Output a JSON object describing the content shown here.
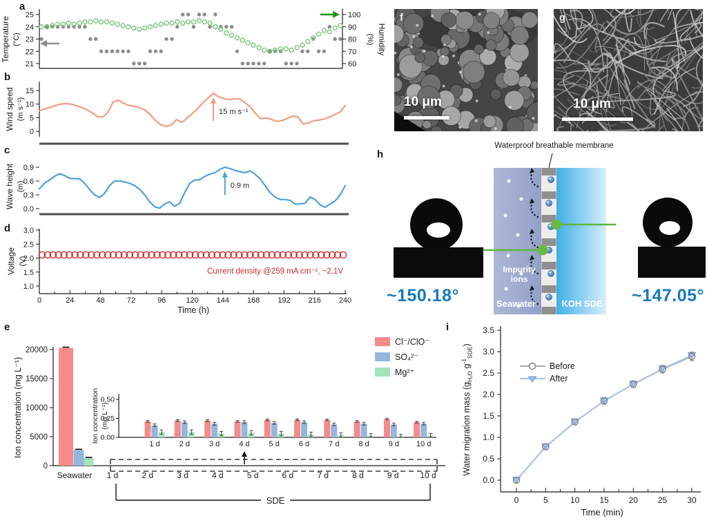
{
  "figure": {
    "panels": {
      "a": "a",
      "b": "b",
      "c": "c",
      "d": "d",
      "e": "e",
      "f": "f",
      "g": "g",
      "h": "h",
      "i": "i"
    }
  },
  "colors": {
    "temperature": "#8c8c8c",
    "humidity": "#7cc47c",
    "humidity_arrow": "#189618",
    "wind": "#f29b80",
    "wave": "#4f9fd9",
    "voltage": "#cf2b31",
    "bar_cl": "#f58b8b",
    "bar_so4": "#96b7dc",
    "bar_mg": "#a5e3bd",
    "before": "#8a8a8a",
    "after": "#9fc0e8",
    "after_line": "#a9c3e8",
    "angle_text": "#1879be",
    "green_link": "#5cb83c"
  },
  "chart_data": [
    {
      "id": "a",
      "type": "scatter",
      "ylabel_left": "Temperature",
      "ylabel_left_unit": "(°C)",
      "yticks_left": [
        21,
        22,
        23,
        24,
        25
      ],
      "ylim_left": [
        20.5,
        25.5
      ],
      "ylabel_right": "Humidity",
      "ylabel_right_unit": "(%)",
      "yticks_right": [
        60,
        70,
        80,
        90,
        100
      ],
      "ylim_right": [
        55,
        105
      ],
      "x_range_hours": [
        0,
        240
      ],
      "series": [
        {
          "name": "Temperature",
          "marker": "filled-circle",
          "color": "#8c8c8c",
          "values": [
            23,
            24,
            24,
            24,
            24,
            24,
            24,
            24,
            24,
            23,
            23,
            22,
            22,
            22,
            22,
            22,
            22,
            21,
            21,
            21,
            22,
            22,
            22,
            23,
            23,
            24,
            25,
            25,
            24,
            25,
            25,
            24,
            25,
            24,
            24,
            24,
            22,
            21,
            21,
            21,
            21,
            21,
            22,
            22,
            22,
            21,
            21,
            21,
            22,
            22,
            23,
            22,
            22,
            24,
            23,
            23
          ]
        },
        {
          "name": "Humidity",
          "marker": "open-circle",
          "color": "#7cc47c",
          "values": [
            90,
            90,
            91,
            92,
            92,
            93,
            92,
            93,
            94,
            94,
            95,
            94,
            94,
            93,
            92,
            91,
            90,
            89,
            88,
            89,
            90,
            91,
            92,
            93,
            93,
            94,
            93,
            94,
            94,
            95,
            94,
            93,
            90,
            88,
            85,
            83,
            81,
            79,
            77,
            75,
            73,
            71,
            70,
            71,
            72,
            72,
            71,
            73,
            75,
            78,
            81,
            84,
            87,
            86,
            89,
            91
          ]
        }
      ]
    },
    {
      "id": "b",
      "type": "line",
      "ylabel": "Wind speed",
      "ylabel_unit": "(m s⁻¹)",
      "yticks": [
        0,
        5,
        10,
        15
      ],
      "ylim": [
        0,
        16
      ],
      "x_range_hours": [
        0,
        240
      ],
      "color": "#f29b80",
      "annotation": "15 m s⁻¹",
      "values": [
        7.5,
        8.2,
        8.8,
        9.4,
        10.0,
        10.2,
        10.0,
        9.4,
        8.8,
        8.0,
        6.8,
        5.4,
        5.2,
        7.0,
        10.8,
        11.4,
        10.3,
        9.5,
        9.2,
        8.7,
        7.8,
        6.2,
        4.0,
        2.4,
        1.8,
        2.2,
        4.3,
        3.2,
        4.8,
        6.5,
        8.3,
        10.4,
        12.2,
        14.0,
        12.6,
        12.1,
        11.6,
        11.9,
        12.0,
        10.5,
        9.0,
        6.5,
        4.6,
        4.9,
        4.4,
        3.6,
        3.9,
        4.7,
        5.6,
        5.3,
        2.7,
        3.0,
        3.9,
        4.1,
        4.5,
        5.2,
        6.2,
        7.0,
        9.5
      ]
    },
    {
      "id": "c",
      "type": "line",
      "ylabel": "Wave height",
      "ylabel_unit": "(m)",
      "yticks": [
        0.0,
        0.3,
        0.6,
        0.9
      ],
      "ylim": [
        0,
        1.0
      ],
      "x_range_hours": [
        0,
        240
      ],
      "color": "#4f9fd9",
      "annotation": "0.9 m",
      "values": [
        0.43,
        0.55,
        0.62,
        0.7,
        0.76,
        0.72,
        0.66,
        0.65,
        0.65,
        0.55,
        0.42,
        0.3,
        0.24,
        0.33,
        0.5,
        0.6,
        0.6,
        0.58,
        0.55,
        0.5,
        0.42,
        0.3,
        0.15,
        0.04,
        0.01,
        0.1,
        0.15,
        0.05,
        0.12,
        0.35,
        0.55,
        0.62,
        0.63,
        0.7,
        0.75,
        0.78,
        0.85,
        0.9,
        0.87,
        0.83,
        0.8,
        0.78,
        0.82,
        0.75,
        0.65,
        0.5,
        0.35,
        0.25,
        0.2,
        0.2,
        0.18,
        0.1,
        0.1,
        0.12,
        0.25,
        0.2,
        0.08,
        0.03,
        0.1,
        0.17,
        0.3,
        0.5
      ]
    },
    {
      "id": "d",
      "type": "scatter",
      "ylabel": "Voltage",
      "ylabel_unit": "(V)",
      "yticks": [
        1.0,
        1.5,
        2.0,
        2.5,
        3.0
      ],
      "ylim": [
        1.0,
        3.0
      ],
      "xlabel": "Time (h)",
      "xticks": [
        0,
        24,
        48,
        72,
        96,
        120,
        144,
        168,
        192,
        216,
        240
      ],
      "color": "#cf2b31",
      "value": 2.1,
      "n_points": 56,
      "annotation": "Current density @259 mA cm⁻²,  ~2.1V"
    },
    {
      "id": "e",
      "type": "bar",
      "ylabel": "Ion concentration (mg L⁻¹)",
      "yticks": [
        0,
        5000,
        10000,
        15000,
        20000
      ],
      "categories": [
        "Seawater",
        "1 d",
        "2 d",
        "3 d",
        "4 d",
        "5 d",
        "6 d",
        "7 d",
        "8 d",
        "9 d",
        "10 d"
      ],
      "bracket_label": "SDE",
      "series": [
        {
          "name": "Cl⁻/ClO⁻",
          "color": "#f58b8b",
          "seawater": 20300
        },
        {
          "name": "SO₄²⁻",
          "color": "#96b7dc",
          "seawater": 2700
        },
        {
          "name": "Mg²⁺",
          "color": "#a5e3bd",
          "seawater": 1300
        }
      ],
      "inset": {
        "ylabel": "Ion concentration",
        "ylabel_unit": "(mg L⁻¹)",
        "yticks": [
          0.0,
          0.25,
          0.5
        ],
        "categories": [
          "1 d",
          "2 d",
          "3 d",
          "4 d",
          "5 d",
          "6 d",
          "7 d",
          "8 d",
          "9 d",
          "10 d"
        ],
        "series": [
          {
            "name": "Cl⁻/ClO⁻",
            "values": [
              0.21,
              0.22,
              0.22,
              0.21,
              0.23,
              0.23,
              0.23,
              0.21,
              0.24,
              0.2
            ]
          },
          {
            "name": "SO₄²⁻",
            "values": [
              0.16,
              0.2,
              0.18,
              0.2,
              0.19,
              0.2,
              0.17,
              0.18,
              0.17,
              0.18
            ]
          },
          {
            "name": "Mg²⁺",
            "values": [
              0.07,
              0.07,
              0.05,
              0.06,
              0.05,
              0.04,
              0.03,
              0.02,
              0.01,
              0.02
            ]
          }
        ]
      }
    },
    {
      "id": "i",
      "type": "line",
      "ylabel_parts": [
        {
          "t": "Water migration mass (g"
        },
        {
          "t": "H₂O",
          "s": "sub"
        },
        {
          "t": " g"
        },
        {
          "t": "-1",
          "s": "sup"
        },
        {
          "t": "SDE",
          "s": "sub"
        },
        {
          "t": ")"
        }
      ],
      "xlabel": "Time (min)",
      "xticks": [
        0,
        5,
        10,
        15,
        20,
        25,
        30
      ],
      "yticks": [
        0.0,
        0.5,
        1.0,
        1.5,
        2.0,
        2.5,
        3.0,
        3.5
      ],
      "x": [
        0,
        5,
        10,
        15,
        20,
        25,
        30
      ],
      "series": [
        {
          "name": "Before",
          "marker": "open-circle",
          "color": "#8a8a8a",
          "values": [
            0.0,
            0.78,
            1.36,
            1.85,
            2.24,
            2.59,
            2.89
          ]
        },
        {
          "name": "After",
          "marker": "filled-triangle-down",
          "color": "#9fc0e8",
          "values": [
            0.02,
            0.8,
            1.38,
            1.87,
            2.26,
            2.62,
            2.93
          ]
        }
      ],
      "errors": [
        0.06,
        0.07,
        0.07,
        0.08,
        0.08,
        0.09,
        0.1
      ]
    }
  ],
  "panel_f": {
    "scale_bar": "10 μm"
  },
  "panel_g": {
    "scale_bar": "10 μm"
  },
  "panel_h": {
    "membrane_label": "Waterproof breathable membrane",
    "left_region": "Seawater",
    "right_region": "KOH SDE",
    "impurity_label": "Impurity ions",
    "left_angle": "~150.18°",
    "right_angle": "~147.05°"
  }
}
